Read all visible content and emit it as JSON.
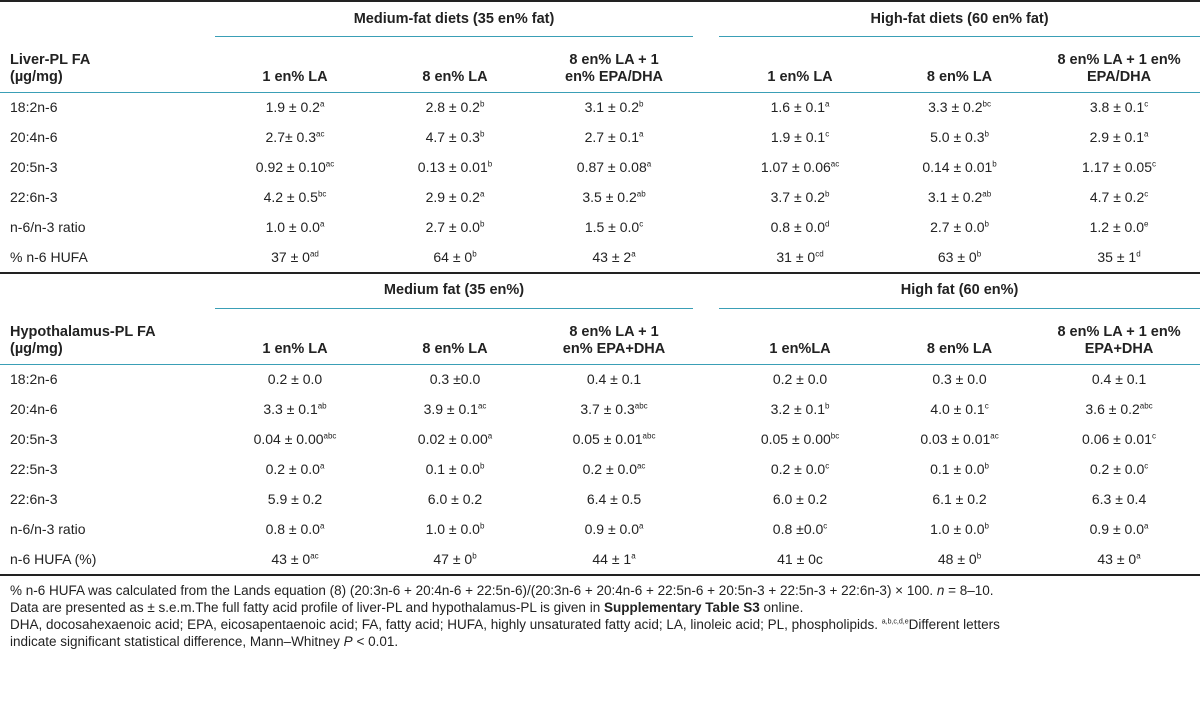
{
  "liver": {
    "group1": "Medium-fat diets (35 en% fat)",
    "group2": "High-fat diets (60 en% fat)",
    "row_label_header": [
      "Liver-PL FA",
      "(µg/mg)"
    ],
    "columns": [
      [
        "1 en% LA"
      ],
      [
        "8 en% LA"
      ],
      [
        "8 en% LA + 1",
        "en% EPA/DHA"
      ],
      [
        "1 en% LA"
      ],
      [
        "8 en% LA"
      ],
      [
        "8 en% LA + 1 en%",
        "EPA/DHA"
      ]
    ],
    "rows": [
      {
        "label": "18:2n-6",
        "cells": [
          [
            "1.9 ± 0.2",
            "a"
          ],
          [
            "2.8 ± 0.2",
            "b"
          ],
          [
            "3.1 ± 0.2",
            "b"
          ],
          [
            "1.6 ± 0.1",
            "a"
          ],
          [
            "3.3 ± 0.2",
            "bc"
          ],
          [
            "3.8 ± 0.1",
            "c"
          ]
        ]
      },
      {
        "label": "20:4n-6",
        "cells": [
          [
            "2.7± 0.3",
            "ac"
          ],
          [
            "4.7 ± 0.3",
            "b"
          ],
          [
            "2.7 ± 0.1",
            "a"
          ],
          [
            "1.9 ± 0.1",
            "c"
          ],
          [
            "5.0 ± 0.3",
            "b"
          ],
          [
            "2.9 ± 0.1",
            "a"
          ]
        ]
      },
      {
        "label": "20:5n-3",
        "cells": [
          [
            "0.92 ± 0.10",
            "ac"
          ],
          [
            "0.13 ± 0.01",
            "b"
          ],
          [
            "0.87 ± 0.08",
            "a"
          ],
          [
            "1.07 ± 0.06",
            "ac"
          ],
          [
            "0.14 ± 0.01",
            "b"
          ],
          [
            "1.17 ± 0.05",
            "c"
          ]
        ]
      },
      {
        "label": "22:6n-3",
        "cells": [
          [
            "4.2 ± 0.5",
            "bc"
          ],
          [
            "2.9 ± 0.2",
            "a"
          ],
          [
            "3.5 ± 0.2",
            "ab"
          ],
          [
            "3.7 ± 0.2",
            "b"
          ],
          [
            "3.1 ± 0.2",
            "ab"
          ],
          [
            "4.7 ± 0.2",
            "c"
          ]
        ]
      },
      {
        "label": "n-6/n-3 ratio",
        "cells": [
          [
            "1.0 ± 0.0",
            "a"
          ],
          [
            "2.7 ± 0.0",
            "b"
          ],
          [
            "1.5 ± 0.0",
            "c"
          ],
          [
            "0.8 ± 0.0",
            "d"
          ],
          [
            "2.7 ± 0.0",
            "b"
          ],
          [
            "1.2 ± 0.0",
            "e"
          ]
        ]
      },
      {
        "label": "% n-6 HUFA",
        "cells": [
          [
            "37 ± 0",
            "ad"
          ],
          [
            "64 ± 0",
            "b"
          ],
          [
            "43 ± 2",
            "a"
          ],
          [
            "31 ± 0",
            "cd"
          ],
          [
            "63 ± 0",
            "b"
          ],
          [
            "35 ± 1",
            "d"
          ]
        ]
      }
    ]
  },
  "hypothalamus": {
    "group1": "Medium fat (35 en%)",
    "group2": "High fat (60 en%)",
    "row_label_header": [
      "Hypothalamus-PL FA",
      "(µg/mg)"
    ],
    "columns": [
      [
        "1 en% LA"
      ],
      [
        "8 en% LA"
      ],
      [
        "8 en% LA + 1",
        "en% EPA+DHA"
      ],
      [
        "1 en%LA"
      ],
      [
        "8 en% LA"
      ],
      [
        "8 en% LA + 1 en%",
        "EPA+DHA"
      ]
    ],
    "rows": [
      {
        "label": "18:2n-6",
        "cells": [
          [
            "0.2 ± 0.0",
            ""
          ],
          [
            "0.3 ±0.0",
            ""
          ],
          [
            "0.4 ± 0.1",
            ""
          ],
          [
            "0.2 ± 0.0",
            ""
          ],
          [
            "0.3 ± 0.0",
            ""
          ],
          [
            "0.4 ± 0.1",
            ""
          ]
        ]
      },
      {
        "label": "20:4n-6",
        "cells": [
          [
            "3.3 ± 0.1",
            "ab"
          ],
          [
            "3.9 ± 0.1",
            "ac"
          ],
          [
            "3.7 ± 0.3",
            "abc"
          ],
          [
            "3.2 ± 0.1",
            "b"
          ],
          [
            "4.0 ± 0.1",
            "c"
          ],
          [
            "3.6 ± 0.2",
            "abc"
          ]
        ]
      },
      {
        "label": "20:5n-3",
        "cells": [
          [
            "0.04 ± 0.00",
            "abc"
          ],
          [
            "0.02 ± 0.00",
            "a"
          ],
          [
            "0.05 ± 0.01",
            "abc"
          ],
          [
            "0.05 ± 0.00",
            "bc"
          ],
          [
            "0.03 ± 0.01",
            "ac"
          ],
          [
            "0.06 ± 0.01",
            "c"
          ]
        ]
      },
      {
        "label": "22:5n-3",
        "cells": [
          [
            "0.2 ± 0.0",
            "a"
          ],
          [
            "0.1 ± 0.0",
            "b"
          ],
          [
            "0.2 ± 0.0",
            "ac"
          ],
          [
            "0.2 ± 0.0",
            "c"
          ],
          [
            "0.1 ± 0.0",
            "b"
          ],
          [
            "0.2 ± 0.0",
            "c"
          ]
        ]
      },
      {
        "label": "22:6n-3",
        "cells": [
          [
            "5.9 ± 0.2",
            ""
          ],
          [
            "6.0 ± 0.2",
            ""
          ],
          [
            "6.4 ± 0.5",
            ""
          ],
          [
            "6.0 ± 0.2",
            ""
          ],
          [
            "6.1 ± 0.2",
            ""
          ],
          [
            "6.3 ± 0.4",
            ""
          ]
        ]
      },
      {
        "label": "n-6/n-3 ratio",
        "cells": [
          [
            "0.8 ± 0.0",
            "a"
          ],
          [
            "1.0 ± 0.0",
            "b"
          ],
          [
            "0.9 ± 0.0",
            "a"
          ],
          [
            "0.8 ±0.0",
            "c"
          ],
          [
            "1.0 ± 0.0",
            "b"
          ],
          [
            "0.9 ± 0.0",
            "a"
          ]
        ]
      },
      {
        "label": "n-6 HUFA (%)",
        "cells": [
          [
            "43 ± 0",
            "ac"
          ],
          [
            "47 ± 0",
            "b"
          ],
          [
            "44 ± 1",
            "a"
          ],
          [
            "41 ± 0c",
            ""
          ],
          [
            "48 ± 0",
            "b"
          ],
          [
            "43 ± 0",
            "a"
          ]
        ]
      }
    ]
  },
  "footnotes": {
    "line1_a": "% n-6 HUFA was calculated from the Lands equation (8) (20:3n-6 + 20:4n-6 + 22:5n-6)/(20:3n-6 + 20:4n-6 + 22:5n-6 + 20:5n-3 + 22:5n-3 + 22:6n-3) × 100. ",
    "line1_n": "n",
    "line1_b": " = 8–10.",
    "line2_a": "Data are presented as ± s.e.m.The full fatty acid profile of liver-PL and hypothalamus-PL is given in ",
    "line2_bold": "Supplementary Table S3",
    "line2_b": " online.",
    "line3_a": "DHA, docosahexaenoic acid; EPA, eicosapentaenoic acid; FA, fatty acid; HUFA, highly unsaturated fatty acid; LA, linoleic acid; PL, phospholipids. ",
    "line3_sup": "a,b,c,d,e",
    "line3_b": "Different letters",
    "line4_a": "indicate significant statistical difference, Mann–Whitney ",
    "line4_p": "P",
    "line4_b": " < 0.01."
  }
}
